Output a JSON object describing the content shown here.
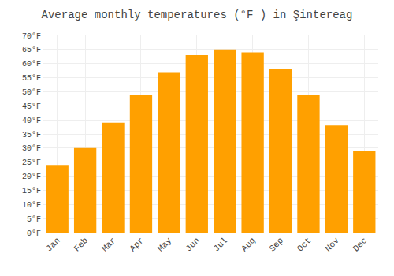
{
  "chart_data": {
    "type": "bar",
    "title": "Average monthly temperatures (°F ) in Şintereag",
    "categories": [
      "Jan",
      "Feb",
      "Mar",
      "Apr",
      "May",
      "Jun",
      "Jul",
      "Aug",
      "Sep",
      "Oct",
      "Nov",
      "Dec"
    ],
    "values": [
      24,
      30,
      39,
      49,
      57,
      63,
      65,
      64,
      58,
      49,
      38,
      29
    ],
    "color": "#FFA000",
    "ylim": [
      0,
      70
    ],
    "yticks": [
      {
        "value": 0,
        "label": "0°F"
      },
      {
        "value": 5,
        "label": "5°F"
      },
      {
        "value": 10,
        "label": "10°F"
      },
      {
        "value": 15,
        "label": "15°F"
      },
      {
        "value": 20,
        "label": "20°F"
      },
      {
        "value": 25,
        "label": "25°F"
      },
      {
        "value": 30,
        "label": "30°F"
      },
      {
        "value": 35,
        "label": "35°F"
      },
      {
        "value": 40,
        "label": "40°F"
      },
      {
        "value": 45,
        "label": "45°F"
      },
      {
        "value": 50,
        "label": "50°F"
      },
      {
        "value": 55,
        "label": "55°F"
      },
      {
        "value": 60,
        "label": "60°F"
      },
      {
        "value": 65,
        "label": "65°F"
      },
      {
        "value": 70,
        "label": "70°F"
      }
    ],
    "grid": true
  }
}
